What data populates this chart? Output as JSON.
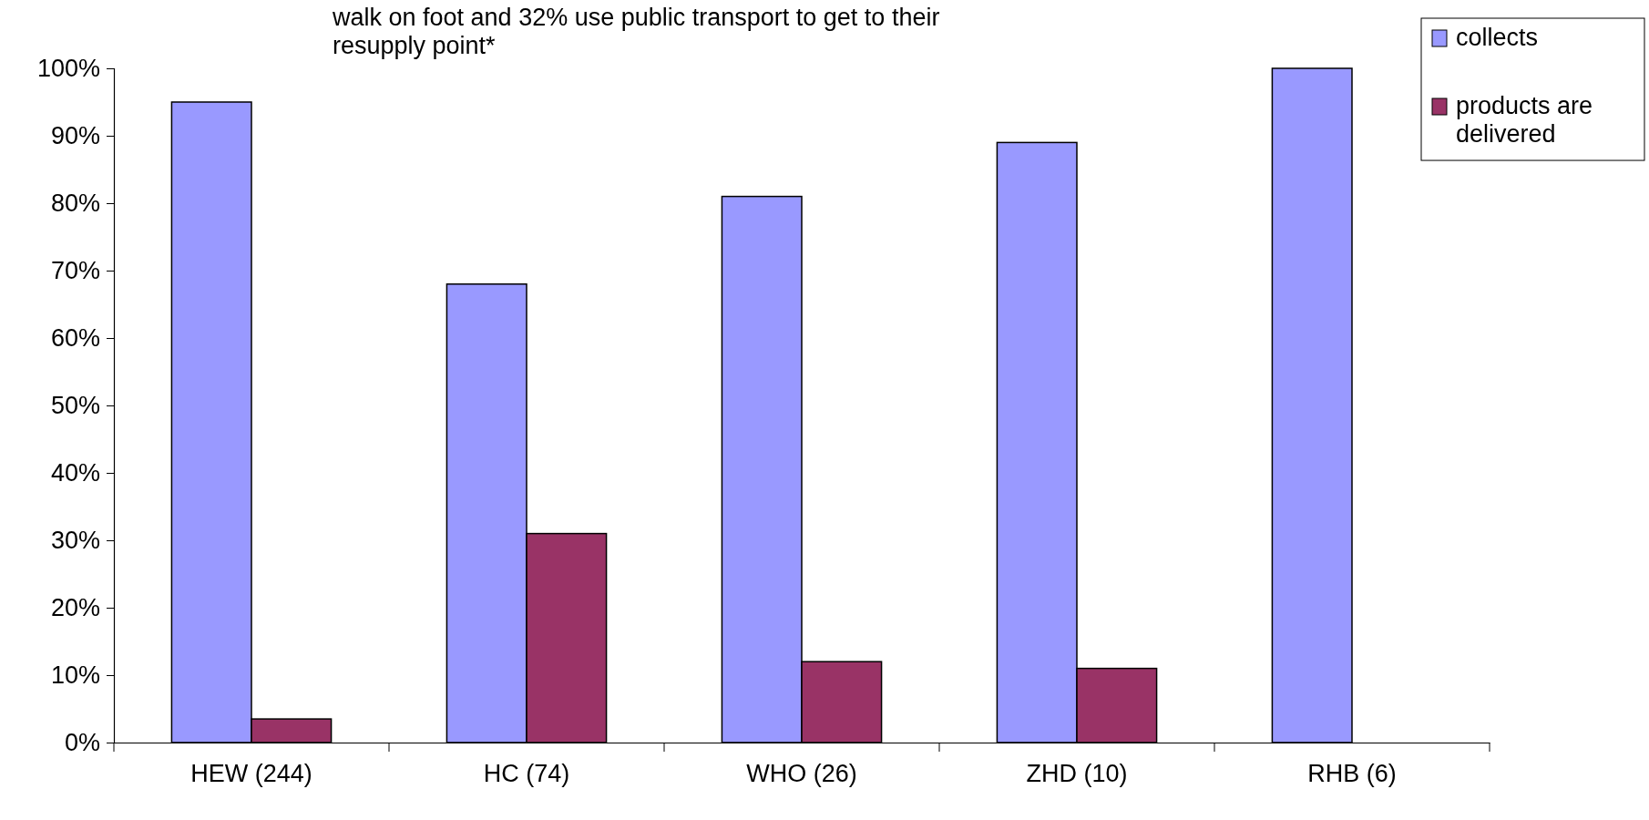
{
  "chart_data": {
    "type": "bar",
    "categories": [
      "HEW (244)",
      "HC (74)",
      "WHO (26)",
      "ZHD (10)",
      "RHB (6)"
    ],
    "series": [
      {
        "name": "collects",
        "color": "#9999ff",
        "values": [
          95,
          68,
          81,
          89,
          100
        ]
      },
      {
        "name": "products are delivered",
        "color": "#993366",
        "values": [
          3.5,
          31,
          12,
          11,
          0
        ]
      }
    ],
    "ylim": [
      0,
      100
    ],
    "yticks": [
      {
        "value": 0,
        "label": "0%"
      },
      {
        "value": 10,
        "label": "10%"
      },
      {
        "value": 20,
        "label": "20%"
      },
      {
        "value": 30,
        "label": "30%"
      },
      {
        "value": 40,
        "label": "40%"
      },
      {
        "value": 50,
        "label": "50%"
      },
      {
        "value": 60,
        "label": "60%"
      },
      {
        "value": 70,
        "label": "70%"
      },
      {
        "value": 80,
        "label": "80%"
      },
      {
        "value": 90,
        "label": "90%"
      },
      {
        "value": 100,
        "label": "100%"
      }
    ],
    "grid": false,
    "legend": "top right",
    "annotations": [
      "walk on foot and 32% use public transport to get to their resupply point*"
    ]
  }
}
